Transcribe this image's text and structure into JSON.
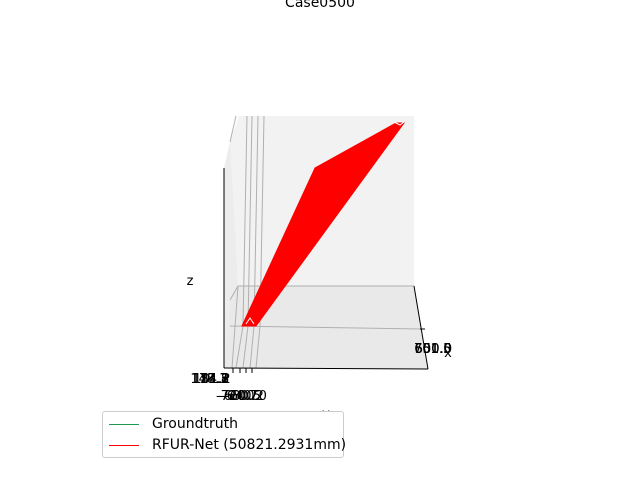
{
  "chart_data": {
    "type": "line",
    "projection": "3d",
    "title": "Case0500",
    "xlabel": "x",
    "ylabel": "y",
    "zlabel": "z",
    "x_ticks": [
      "701.5",
      "651.0",
      "600.5",
      "550.0"
    ],
    "y_ticks": [
      "-600.0",
      "-640.2",
      "-680.5",
      "-720.7"
    ],
    "z_ticks": [
      "148.3",
      "124.8",
      "101.2",
      "77.7",
      "54.2"
    ],
    "series": [
      {
        "name": "Groundtruth",
        "color": "#1a9850",
        "points": []
      },
      {
        "name": "RFUR-Net (50821.2931mm)",
        "color": "#ff0000",
        "shape": "filled-wedge"
      }
    ],
    "legend_position": "lower-left",
    "grid": true
  }
}
